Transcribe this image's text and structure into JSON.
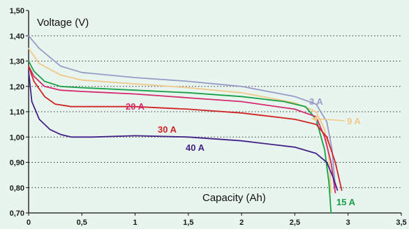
{
  "chart_data": {
    "type": "line",
    "xlabel": "Capacity (Ah)",
    "ylabel": "Voltage (V)",
    "xlim": [
      0,
      3.5
    ],
    "ylim": [
      0.7,
      1.5
    ],
    "grid": "horizontal dotted",
    "x_ticks": [
      "0",
      "0,5",
      "1",
      "1,5",
      "2",
      "2,5",
      "3",
      "3,5"
    ],
    "y_ticks": [
      "0,70",
      "0,80",
      "0,90",
      "1,00",
      "1,10",
      "1,20",
      "1,30",
      "1,40",
      "1,50"
    ],
    "series": [
      {
        "name": "3 A",
        "color": "#9a9ac8",
        "x": [
          0,
          0.1,
          0.3,
          0.5,
          1.0,
          1.5,
          2.0,
          2.5,
          2.7,
          2.8,
          2.85,
          2.88
        ],
        "y": [
          1.4,
          1.35,
          1.28,
          1.255,
          1.235,
          1.22,
          1.2,
          1.16,
          1.13,
          1.06,
          0.95,
          0.8
        ]
      },
      {
        "name": "9 A",
        "color": "#f0c888",
        "x": [
          0,
          0.1,
          0.3,
          0.5,
          1.0,
          1.5,
          2.0,
          2.5,
          2.7,
          2.78,
          2.82,
          2.84
        ],
        "y": [
          1.35,
          1.29,
          1.245,
          1.225,
          1.21,
          1.195,
          1.175,
          1.135,
          1.1,
          1.03,
          0.92,
          0.78
        ]
      },
      {
        "name": "15 A",
        "color": "#17a046",
        "x": [
          0,
          0.05,
          0.15,
          0.3,
          0.5,
          1.0,
          1.5,
          2.0,
          2.4,
          2.6,
          2.7,
          2.78,
          2.82,
          2.84
        ],
        "y": [
          1.3,
          1.26,
          1.22,
          1.2,
          1.195,
          1.185,
          1.175,
          1.16,
          1.14,
          1.12,
          1.07,
          0.95,
          0.82,
          0.7
        ]
      },
      {
        "name": "20 A",
        "color": "#d42a6e",
        "x": [
          0,
          0.05,
          0.15,
          0.3,
          0.5,
          1.0,
          1.5,
          2.0,
          2.5,
          2.7,
          2.78,
          2.84,
          2.88
        ],
        "y": [
          1.28,
          1.24,
          1.2,
          1.185,
          1.18,
          1.17,
          1.155,
          1.14,
          1.11,
          1.08,
          1.0,
          0.9,
          0.78
        ]
      },
      {
        "name": "30 A",
        "color": "#d02424",
        "x": [
          0,
          0.05,
          0.15,
          0.25,
          0.4,
          0.6,
          1.0,
          1.5,
          2.0,
          2.5,
          2.7,
          2.8,
          2.88,
          2.94
        ],
        "y": [
          1.28,
          1.22,
          1.16,
          1.13,
          1.12,
          1.12,
          1.12,
          1.11,
          1.095,
          1.07,
          1.05,
          1.0,
          0.9,
          0.79
        ]
      },
      {
        "name": "40 A",
        "color": "#442288",
        "x": [
          0,
          0.03,
          0.1,
          0.2,
          0.3,
          0.4,
          0.6,
          1.0,
          1.5,
          2.0,
          2.5,
          2.7,
          2.8,
          2.86,
          2.9
        ],
        "y": [
          1.26,
          1.14,
          1.07,
          1.03,
          1.01,
          1.0,
          1.0,
          1.005,
          1.0,
          0.985,
          0.96,
          0.935,
          0.9,
          0.84,
          0.79
        ]
      }
    ]
  }
}
